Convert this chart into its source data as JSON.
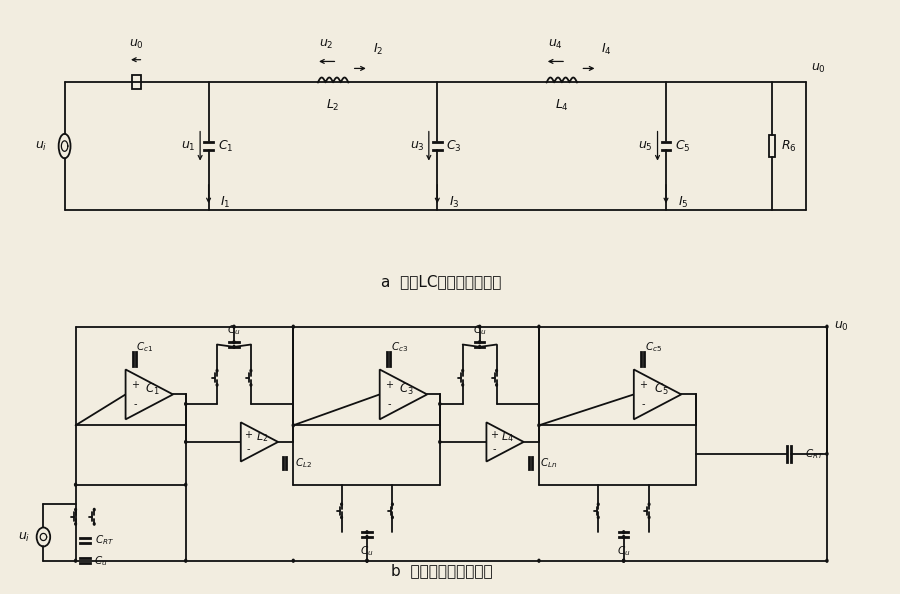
{
  "title_a": "a  五阶LC低通滤波器原理",
  "title_b": "b  对应开关电容滤波器",
  "bg_color": "#f2ede0",
  "lc": "#111111"
}
